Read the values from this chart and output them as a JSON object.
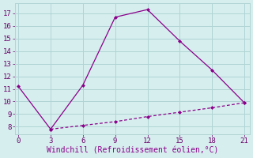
{
  "line1_x": [
    0,
    3,
    6,
    9,
    12,
    15,
    18,
    21
  ],
  "line1_y": [
    11.2,
    7.8,
    11.3,
    16.7,
    17.3,
    14.8,
    12.5,
    9.9
  ],
  "line2_x": [
    3,
    6,
    9,
    12,
    15,
    18,
    21
  ],
  "line2_y": [
    7.8,
    8.1,
    8.4,
    8.8,
    9.15,
    9.5,
    9.9
  ],
  "line_color": "#8b008b",
  "bg_color": "#d6eeee",
  "grid_color": "#b0d4d4",
  "xlabel": "Windchill (Refroidissement éolien,°C)",
  "xlabel_color": "#8b008b",
  "xlabel_fontsize": 7,
  "xticks": [
    0,
    3,
    6,
    9,
    12,
    15,
    18,
    21
  ],
  "yticks": [
    8,
    9,
    10,
    11,
    12,
    13,
    14,
    15,
    16,
    17
  ],
  "xlim": [
    -0.3,
    21.5
  ],
  "ylim": [
    7.4,
    17.8
  ],
  "tick_fontsize": 6.5
}
